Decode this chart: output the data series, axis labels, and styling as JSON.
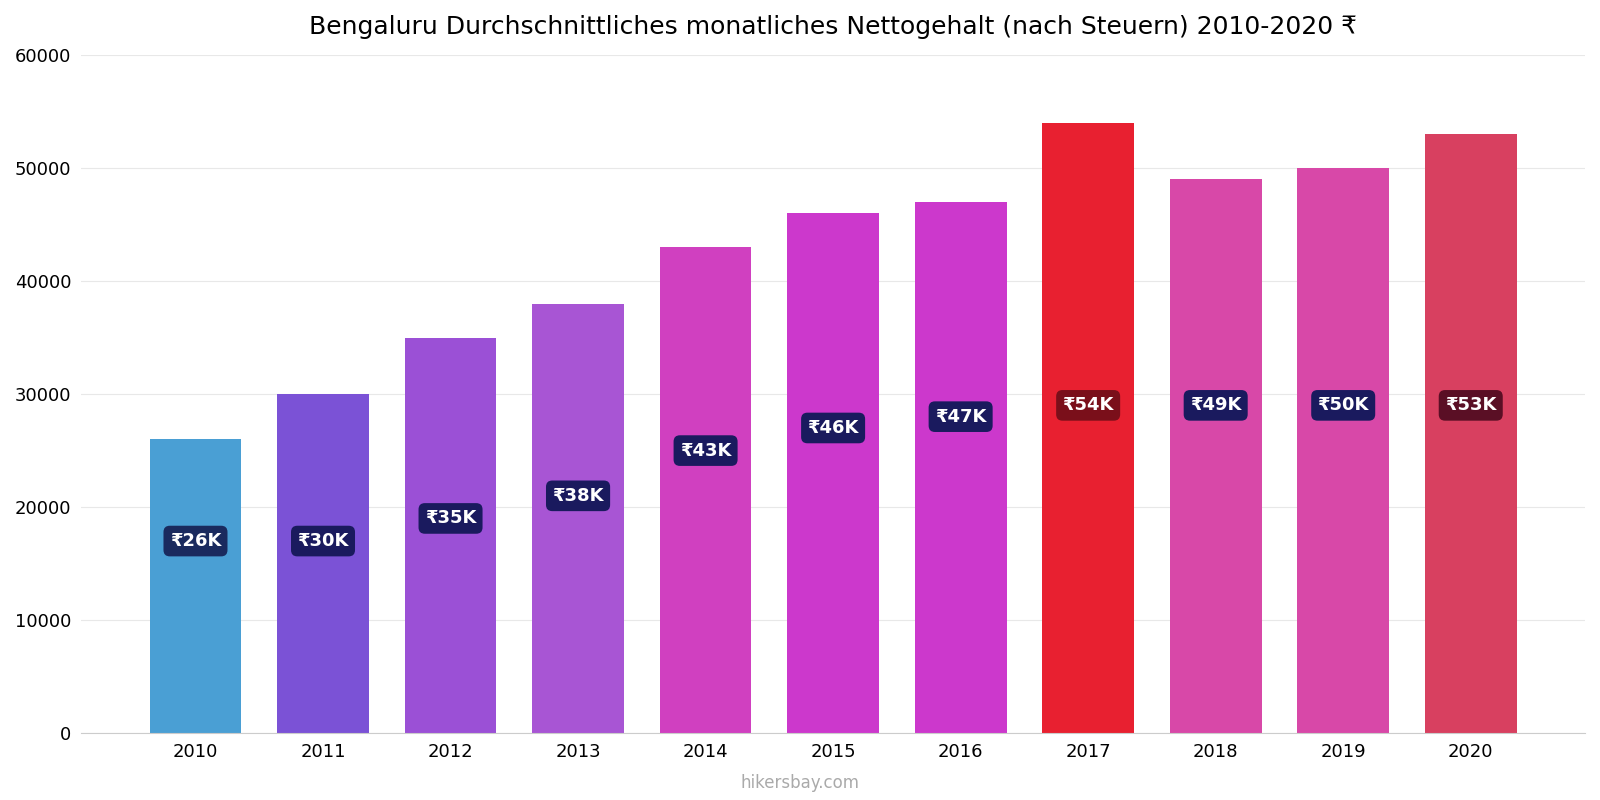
{
  "title": "Bengaluru Durchschnittliches monatliches Nettogehalt (nach Steuern) 2010-2020 ₹",
  "years": [
    2010,
    2011,
    2012,
    2013,
    2014,
    2015,
    2016,
    2017,
    2018,
    2019,
    2020
  ],
  "values": [
    26000,
    30000,
    35000,
    38000,
    43000,
    46000,
    47000,
    54000,
    49000,
    50000,
    53000
  ],
  "labels": [
    "₹26K",
    "₹30K",
    "₹35K",
    "₹38K",
    "₹43K",
    "₹46K",
    "₹47K",
    "₹54K",
    "₹49K",
    "₹50K",
    "₹53K"
  ],
  "bar_colors": [
    "#4a9fd4",
    "#7b52d6",
    "#9b50d6",
    "#a855d4",
    "#d040c0",
    "#cc38cc",
    "#cc38cc",
    "#e82030",
    "#d848a8",
    "#d848a8",
    "#d84060"
  ],
  "label_bg_colors": [
    "#1a2a5e",
    "#1a1a5e",
    "#1a1a5e",
    "#1a1a5e",
    "#1a1a5e",
    "#1a1a5e",
    "#1a1a5e",
    "#7a0f1a",
    "#1a1a5e",
    "#1a1a5e",
    "#5a0f25"
  ],
  "label_y_positions": [
    17000,
    17000,
    19000,
    21000,
    25000,
    27000,
    28000,
    29000,
    29000,
    29000,
    29000
  ],
  "ylim": [
    0,
    60000
  ],
  "yticks": [
    0,
    10000,
    20000,
    30000,
    40000,
    50000,
    60000
  ],
  "watermark": "hikersbay.com",
  "background_color": "#ffffff",
  "title_fontsize": 18,
  "tick_fontsize": 13,
  "label_fontsize": 13,
  "bar_width": 0.72
}
